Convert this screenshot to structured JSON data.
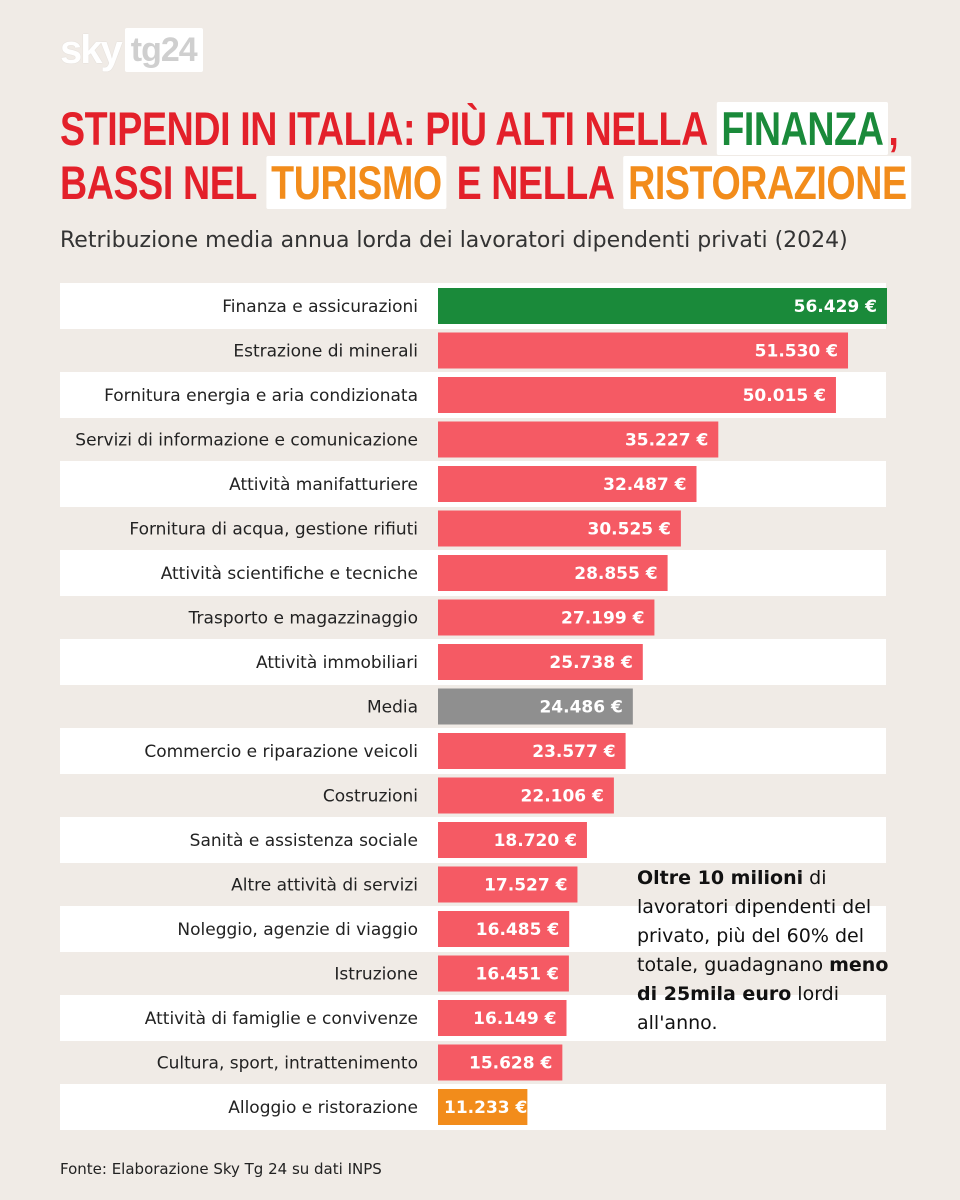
{
  "logo": {
    "sky": "sky",
    "tg": "tg24"
  },
  "title": {
    "line1_pre": "STIPENDI IN ITALIA: PIÙ ALTI NELLA",
    "line1_highlight": "FINANZA",
    "line1_post": ",",
    "line2_pre": "BASSI NEL",
    "line2_highlight1": "TURISMO",
    "line2_mid": "E NELLA",
    "line2_highlight2": "RISTORAZIONE"
  },
  "note": {
    "part1_bold": "Oltre 10 milioni",
    "part2": " di lavoratori dipendenti del privato, più del 60% del totale, guadagnano ",
    "part3_bold": "meno di 25mila euro",
    "part4": " lordi all'anno."
  },
  "source": "Fonte: Elaborazione Sky Tg 24 su dati INPS",
  "colors": {
    "default_bar": "#f55a64",
    "highlight_max": "#1a8a3a",
    "average": "#8f8f8f",
    "highlight_min": "#f28c1b"
  },
  "chart_data": {
    "type": "bar",
    "orientation": "horizontal",
    "title": "Retribuzione media annua lorda dei lavoratori dipendenti privati (2024)",
    "xlim": [
      0,
      56429
    ],
    "categories": [
      "Finanza e assicurazioni",
      "Estrazione di minerali",
      "Fornitura energia e aria condizionata",
      "Servizi di informazione e comunicazione",
      "Attività manifatturiere",
      "Fornitura di acqua, gestione rifiuti",
      "Attività scientifiche e tecniche",
      "Trasporto e magazzinaggio",
      "Attività immobiliari",
      "Media",
      "Commercio e riparazione veicoli",
      "Costruzioni",
      "Sanità e assistenza sociale",
      "Altre attività di servizi",
      "Noleggio, agenzie di viaggio",
      "Istruzione",
      "Attività di famiglie e convivenze",
      "Cultura, sport, intrattenimento",
      "Alloggio e ristorazione"
    ],
    "values": [
      56429,
      51530,
      50015,
      35227,
      32487,
      30525,
      28855,
      27199,
      25738,
      24486,
      23577,
      22106,
      18720,
      17527,
      16485,
      16451,
      16149,
      15628,
      11233
    ],
    "value_labels": [
      "56.429 €",
      "51.530 €",
      "50.015 €",
      "35.227 €",
      "32.487 €",
      "30.525 €",
      "28.855 €",
      "27.199 €",
      "25.738 €",
      "24.486 €",
      "23.577 €",
      "22.106 €",
      "18.720 €",
      "17.527 €",
      "16.485 €",
      "16.451 €",
      "16.149 €",
      "15.628 €",
      "11.233 €"
    ],
    "bar_types": [
      "max",
      "default",
      "default",
      "default",
      "default",
      "default",
      "default",
      "default",
      "default",
      "average",
      "default",
      "default",
      "default",
      "default",
      "default",
      "default",
      "default",
      "default",
      "min"
    ]
  }
}
